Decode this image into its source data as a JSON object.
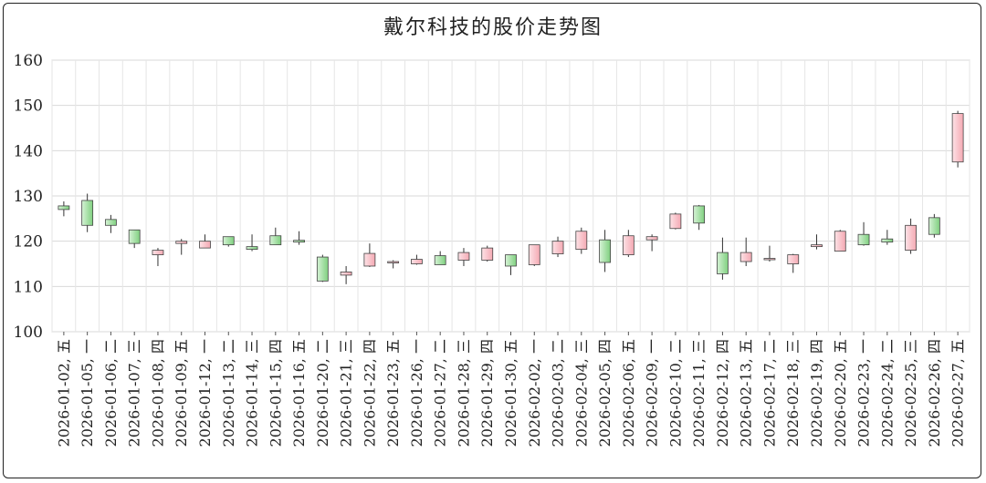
{
  "chart_data": {
    "type": "candlestick",
    "title": "戴尔科技的股价走势图",
    "xlabel": "",
    "ylabel": "",
    "ylim": [
      100,
      160
    ],
    "yticks": [
      100,
      110,
      120,
      130,
      140,
      150,
      160
    ],
    "grid": true,
    "legend": "none",
    "colors": {
      "up": "#f4a9b3",
      "down": "#7fd07f",
      "up_fill_light": "#fde2e6",
      "down_fill_light": "#d6f2d6",
      "wick": "#333333",
      "grid": "#d9d9d9"
    },
    "categories": [
      "2026-01-02, 五",
      "2026-01-05, 一",
      "2026-01-06, 二",
      "2026-01-07, 三",
      "2026-01-08, 四",
      "2026-01-09, 五",
      "2026-01-12, 一",
      "2026-01-13, 二",
      "2026-01-14, 三",
      "2026-01-15, 四",
      "2026-01-16, 五",
      "2026-01-20, 二",
      "2026-01-21, 三",
      "2026-01-22, 四",
      "2026-01-23, 五",
      "2026-01-26, 一",
      "2026-01-27, 二",
      "2026-01-28, 三",
      "2026-01-29, 四",
      "2026-01-30, 五",
      "2026-02-02, 一",
      "2026-02-03, 二",
      "2026-02-04, 三",
      "2026-02-05, 四",
      "2026-02-06, 五",
      "2026-02-09, 一",
      "2026-02-10, 二",
      "2026-02-11, 三",
      "2026-02-12, 四",
      "2026-02-13, 五",
      "2026-02-17, 二",
      "2026-02-18, 三",
      "2026-02-19, 四",
      "2026-02-20, 五",
      "2026-02-23, 一",
      "2026-02-24, 二",
      "2026-02-25, 三",
      "2026-02-26, 四",
      "2026-02-27, 五"
    ],
    "ohlc": [
      {
        "open": 127.8,
        "high": 128.8,
        "low": 125.5,
        "close": 127.0
      },
      {
        "open": 129.0,
        "high": 130.5,
        "low": 122.0,
        "close": 123.5
      },
      {
        "open": 124.8,
        "high": 125.8,
        "low": 121.8,
        "close": 123.5
      },
      {
        "open": 122.5,
        "high": 122.5,
        "low": 118.5,
        "close": 119.5
      },
      {
        "open": 117.0,
        "high": 118.5,
        "low": 114.5,
        "close": 118.0
      },
      {
        "open": 119.5,
        "high": 120.5,
        "low": 117.0,
        "close": 120.0
      },
      {
        "open": 118.5,
        "high": 121.5,
        "low": 118.5,
        "close": 120.0
      },
      {
        "open": 121.0,
        "high": 121.0,
        "low": 118.8,
        "close": 119.2
      },
      {
        "open": 118.8,
        "high": 121.5,
        "low": 117.8,
        "close": 118.2
      },
      {
        "open": 121.2,
        "high": 123.0,
        "low": 119.2,
        "close": 119.2
      },
      {
        "open": 120.2,
        "high": 122.2,
        "low": 119.2,
        "close": 119.8
      },
      {
        "open": 116.5,
        "high": 117.0,
        "low": 111.0,
        "close": 111.2
      },
      {
        "open": 112.5,
        "high": 114.5,
        "low": 110.5,
        "close": 113.2
      },
      {
        "open": 114.5,
        "high": 119.5,
        "low": 114.3,
        "close": 117.3
      },
      {
        "open": 115.3,
        "high": 115.8,
        "low": 114.0,
        "close": 115.5
      },
      {
        "open": 115.0,
        "high": 117.0,
        "low": 114.8,
        "close": 116.0
      },
      {
        "open": 116.8,
        "high": 117.8,
        "low": 114.8,
        "close": 114.8
      },
      {
        "open": 115.8,
        "high": 118.5,
        "low": 114.5,
        "close": 117.5
      },
      {
        "open": 115.8,
        "high": 119.0,
        "low": 115.5,
        "close": 118.5
      },
      {
        "open": 117.0,
        "high": 117.0,
        "low": 112.5,
        "close": 114.5
      },
      {
        "open": 114.8,
        "high": 119.2,
        "low": 114.5,
        "close": 119.2
      },
      {
        "open": 117.2,
        "high": 121.0,
        "low": 116.5,
        "close": 120.0
      },
      {
        "open": 118.2,
        "high": 123.0,
        "low": 117.2,
        "close": 122.2
      },
      {
        "open": 120.3,
        "high": 122.5,
        "low": 113.2,
        "close": 115.3
      },
      {
        "open": 117.0,
        "high": 122.5,
        "low": 116.5,
        "close": 121.2
      },
      {
        "open": 120.3,
        "high": 121.5,
        "low": 117.8,
        "close": 121.0
      },
      {
        "open": 122.8,
        "high": 126.3,
        "low": 122.6,
        "close": 126.0
      },
      {
        "open": 127.8,
        "high": 128.0,
        "low": 122.5,
        "close": 124.0
      },
      {
        "open": 117.5,
        "high": 120.8,
        "low": 111.5,
        "close": 112.8
      },
      {
        "open": 115.5,
        "high": 120.8,
        "low": 114.5,
        "close": 117.5
      },
      {
        "open": 116.0,
        "high": 119.0,
        "low": 115.5,
        "close": 116.2
      },
      {
        "open": 115.0,
        "high": 117.2,
        "low": 113.0,
        "close": 117.0
      },
      {
        "open": 118.8,
        "high": 121.5,
        "low": 118.2,
        "close": 119.2
      },
      {
        "open": 117.8,
        "high": 122.5,
        "low": 117.8,
        "close": 122.2
      },
      {
        "open": 121.5,
        "high": 124.2,
        "low": 119.0,
        "close": 119.2
      },
      {
        "open": 120.5,
        "high": 122.5,
        "low": 119.2,
        "close": 119.8
      },
      {
        "open": 118.0,
        "high": 125.0,
        "low": 117.2,
        "close": 123.5
      },
      {
        "open": 125.2,
        "high": 126.0,
        "low": 120.8,
        "close": 121.5
      },
      {
        "open": 137.5,
        "high": 148.8,
        "low": 136.3,
        "close": 148.2
      }
    ]
  }
}
